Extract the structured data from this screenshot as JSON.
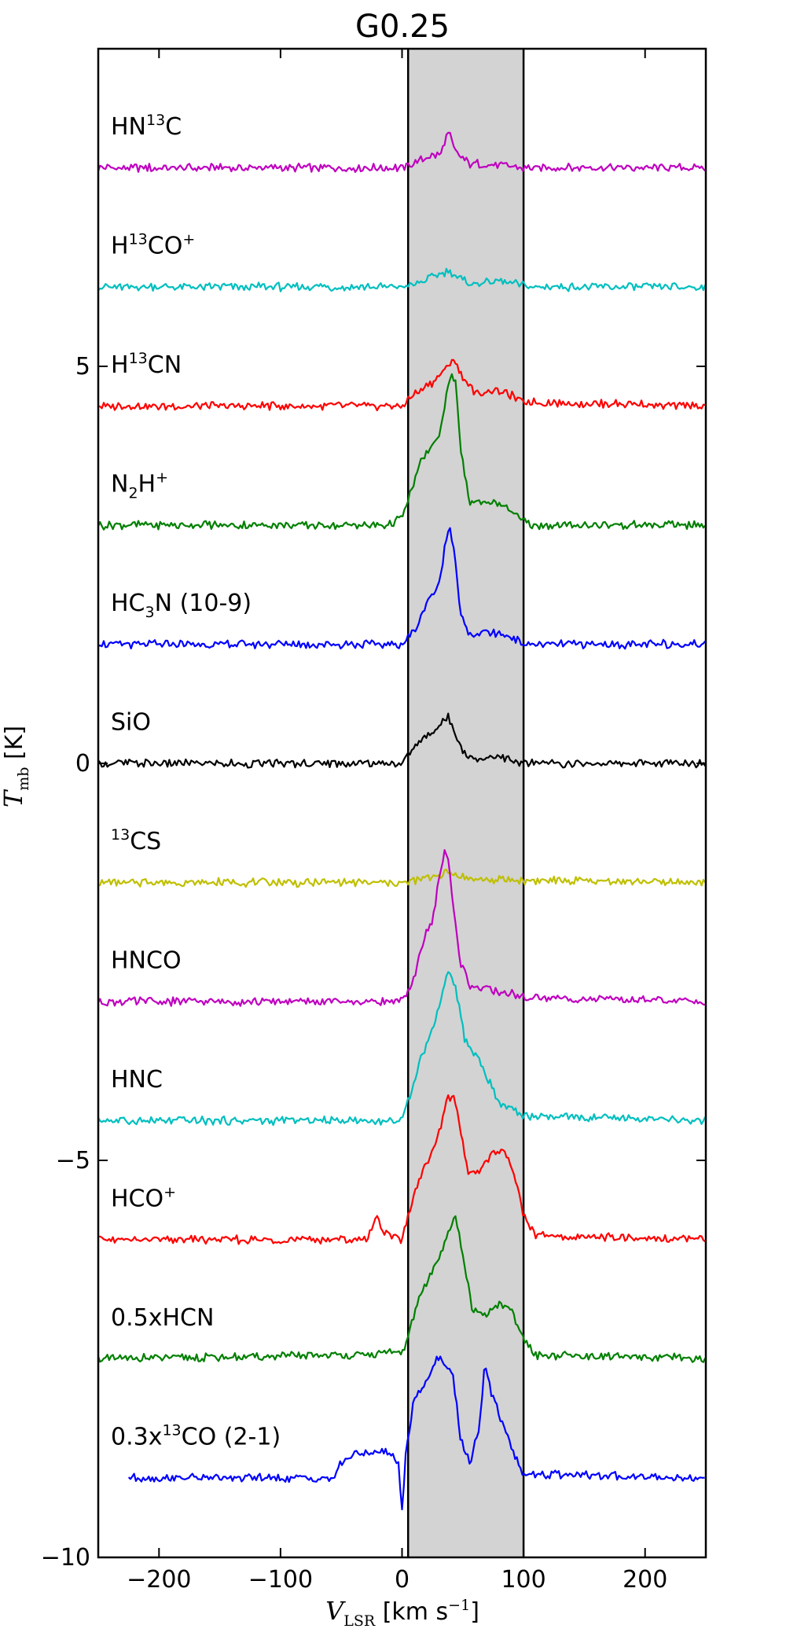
{
  "chart_data": {
    "type": "line",
    "title": "G0.25",
    "xlabel": "V_LSR [km s^-1]",
    "ylabel": "T_mb [K]",
    "xlim": [
      -250,
      250
    ],
    "ylim": [
      -10,
      9
    ],
    "x_ticks": [
      -200,
      -100,
      0,
      100,
      200
    ],
    "y_ticks": [
      -10,
      -5,
      0,
      5
    ],
    "x_tick_labels": [
      "−200",
      "−100",
      "0",
      "100",
      "200"
    ],
    "y_tick_labels": [
      "−10",
      "−5",
      "0",
      "5"
    ],
    "highlight_band": {
      "x_start": 5,
      "x_end": 100,
      "color": "#d3d3d3"
    },
    "grid": false,
    "series": [
      {
        "name": "HN13C",
        "color": "#bf00bf",
        "offset": 7.5,
        "points": [
          [
            -250,
            0
          ],
          [
            0,
            0
          ],
          [
            15,
            0.1
          ],
          [
            25,
            0.15
          ],
          [
            32,
            0.18
          ],
          [
            38,
            0.45
          ],
          [
            44,
            0.2
          ],
          [
            55,
            0.05
          ],
          [
            75,
            0.05
          ],
          [
            100,
            0
          ],
          [
            250,
            0
          ]
        ]
      },
      {
        "name": "H13CO+",
        "color": "#00bfbf",
        "offset": 6.0,
        "points": [
          [
            -250,
            0
          ],
          [
            0,
            0
          ],
          [
            15,
            0.05
          ],
          [
            28,
            0.15
          ],
          [
            38,
            0.2
          ],
          [
            48,
            0.1
          ],
          [
            60,
            0.03
          ],
          [
            75,
            0.08
          ],
          [
            90,
            0.05
          ],
          [
            105,
            0
          ],
          [
            250,
            0
          ]
        ]
      },
      {
        "name": "H13CN",
        "color": "#ff0000",
        "offset": 4.5,
        "points": [
          [
            -250,
            0
          ],
          [
            0,
            0
          ],
          [
            10,
            0.15
          ],
          [
            25,
            0.3
          ],
          [
            35,
            0.45
          ],
          [
            42,
            0.6
          ],
          [
            50,
            0.35
          ],
          [
            62,
            0.15
          ],
          [
            75,
            0.2
          ],
          [
            88,
            0.15
          ],
          [
            100,
            0.05
          ],
          [
            250,
            0
          ]
        ]
      },
      {
        "name": "N2H+",
        "color": "#008000",
        "offset": 3.0,
        "points": [
          [
            -250,
            0
          ],
          [
            -10,
            0
          ],
          [
            0,
            0.1
          ],
          [
            5,
            0.3
          ],
          [
            15,
            0.8
          ],
          [
            25,
            1.0
          ],
          [
            30,
            1.1
          ],
          [
            36,
            1.6
          ],
          [
            40,
            1.9
          ],
          [
            44,
            1.8
          ],
          [
            48,
            1.0
          ],
          [
            55,
            0.3
          ],
          [
            70,
            0.3
          ],
          [
            85,
            0.25
          ],
          [
            95,
            0.1
          ],
          [
            105,
            0
          ],
          [
            250,
            0
          ]
        ]
      },
      {
        "name": "HC3N (10-9)",
        "color": "#0000ff",
        "offset": 1.5,
        "points": [
          [
            -250,
            0
          ],
          [
            0,
            0
          ],
          [
            12,
            0.2
          ],
          [
            22,
            0.6
          ],
          [
            30,
            0.7
          ],
          [
            35,
            1.2
          ],
          [
            39,
            1.5
          ],
          [
            43,
            1.2
          ],
          [
            48,
            0.4
          ],
          [
            55,
            0.1
          ],
          [
            70,
            0.15
          ],
          [
            90,
            0.1
          ],
          [
            100,
            0
          ],
          [
            250,
            0
          ]
        ]
      },
      {
        "name": "SiO",
        "color": "#000000",
        "offset": 0.0,
        "points": [
          [
            -250,
            0
          ],
          [
            0,
            0
          ],
          [
            10,
            0.2
          ],
          [
            25,
            0.4
          ],
          [
            38,
            0.58
          ],
          [
            44,
            0.4
          ],
          [
            52,
            0.1
          ],
          [
            65,
            0.05
          ],
          [
            80,
            0.1
          ],
          [
            95,
            0
          ],
          [
            250,
            0
          ]
        ]
      },
      {
        "name": "13CS",
        "color": "#bfbf00",
        "offset": -1.5,
        "points": [
          [
            -250,
            0
          ],
          [
            0,
            0
          ],
          [
            15,
            0.03
          ],
          [
            30,
            0.1
          ],
          [
            40,
            0.12
          ],
          [
            55,
            0.05
          ],
          [
            80,
            0.03
          ],
          [
            250,
            0
          ]
        ]
      },
      {
        "name": "HNCO",
        "color": "#bf00bf",
        "offset": -3.0,
        "points": [
          [
            -250,
            0
          ],
          [
            0,
            0
          ],
          [
            8,
            0.2
          ],
          [
            18,
            0.8
          ],
          [
            25,
            1.0
          ],
          [
            30,
            1.5
          ],
          [
            35,
            1.9
          ],
          [
            38,
            1.8
          ],
          [
            42,
            1.2
          ],
          [
            48,
            0.5
          ],
          [
            56,
            0.2
          ],
          [
            70,
            0.15
          ],
          [
            90,
            0.1
          ],
          [
            100,
            0.05
          ],
          [
            250,
            0
          ]
        ]
      },
      {
        "name": "HNC",
        "color": "#00bfbf",
        "offset": -4.5,
        "points": [
          [
            -250,
            0
          ],
          [
            0,
            0
          ],
          [
            8,
            0.4
          ],
          [
            15,
            0.8
          ],
          [
            22,
            1.0
          ],
          [
            30,
            1.4
          ],
          [
            36,
            1.8
          ],
          [
            40,
            1.9
          ],
          [
            45,
            1.6
          ],
          [
            52,
            1.0
          ],
          [
            62,
            0.8
          ],
          [
            72,
            0.5
          ],
          [
            80,
            0.2
          ],
          [
            92,
            0.15
          ],
          [
            100,
            0.05
          ],
          [
            250,
            0
          ]
        ]
      },
      {
        "name": "HCO+",
        "color": "#ff0000",
        "offset": -6.0,
        "points": [
          [
            -250,
            0
          ],
          [
            -30,
            0
          ],
          [
            -20,
            0.3
          ],
          [
            -15,
            0.1
          ],
          [
            0,
            0
          ],
          [
            5,
            0.3
          ],
          [
            15,
            0.8
          ],
          [
            28,
            1.2
          ],
          [
            38,
            1.8
          ],
          [
            43,
            1.8
          ],
          [
            48,
            1.4
          ],
          [
            55,
            0.8
          ],
          [
            65,
            0.9
          ],
          [
            75,
            1.1
          ],
          [
            85,
            1.1
          ],
          [
            93,
            0.8
          ],
          [
            100,
            0.3
          ],
          [
            110,
            0.05
          ],
          [
            250,
            0
          ]
        ]
      },
      {
        "name": "0.5xHCN",
        "color": "#008000",
        "offset": -7.5,
        "points": [
          [
            -250,
            0
          ],
          [
            -20,
            0.05
          ],
          [
            -15,
            0.1
          ],
          [
            0,
            0.05
          ],
          [
            5,
            0.3
          ],
          [
            15,
            0.8
          ],
          [
            28,
            1.2
          ],
          [
            38,
            1.6
          ],
          [
            44,
            1.8
          ],
          [
            50,
            1.3
          ],
          [
            58,
            0.6
          ],
          [
            70,
            0.55
          ],
          [
            80,
            0.7
          ],
          [
            90,
            0.6
          ],
          [
            100,
            0.25
          ],
          [
            110,
            0.05
          ],
          [
            250,
            0
          ]
        ]
      },
      {
        "name": "0.3x13CO (2-1)",
        "color": "#0000ff",
        "offset": -9.0,
        "points": [
          [
            -225,
            0
          ],
          [
            -55,
            0
          ],
          [
            -50,
            0.2
          ],
          [
            -40,
            0.3
          ],
          [
            -30,
            0.3
          ],
          [
            -20,
            0.35
          ],
          [
            -10,
            0.3
          ],
          [
            -3,
            0.2
          ],
          [
            0,
            -0.45
          ],
          [
            3,
            0.3
          ],
          [
            10,
            1.0
          ],
          [
            20,
            1.2
          ],
          [
            28,
            1.5
          ],
          [
            35,
            1.45
          ],
          [
            42,
            1.3
          ],
          [
            48,
            0.5
          ],
          [
            56,
            0.2
          ],
          [
            63,
            0.6
          ],
          [
            68,
            1.4
          ],
          [
            75,
            1.0
          ],
          [
            85,
            0.6
          ],
          [
            95,
            0.2
          ],
          [
            100,
            0.05
          ],
          [
            250,
            0
          ]
        ]
      }
    ],
    "series_labels": [
      {
        "pre": "HN",
        "sup": "13",
        "post": "C",
        "y": 7.92
      },
      {
        "pre": "H",
        "sup": "13",
        "post": "CO",
        "sup2": "+",
        "y": 6.42
      },
      {
        "pre": "H",
        "sup": "13",
        "post": "CN",
        "y": 4.92
      },
      {
        "pre": "N",
        "sub": "2",
        "post": "H",
        "sup2": "+",
        "y": 3.42
      },
      {
        "pre": "HC",
        "sub": "3",
        "post": "N (10-9)",
        "y": 1.92
      },
      {
        "pre": "SiO",
        "y": 0.42
      },
      {
        "pre": "",
        "sup": "13",
        "post": "CS",
        "y": -1.08
      },
      {
        "pre": "HNCO",
        "y": -2.58
      },
      {
        "pre": "HNC",
        "y": -4.08
      },
      {
        "pre": "HCO",
        "sup2": "+",
        "y": -5.58
      },
      {
        "pre": "0.5xHCN",
        "y": -7.08
      },
      {
        "pre": "0.3x",
        "sup": "13",
        "post": "CO (2-1)",
        "y": -8.58
      }
    ]
  }
}
